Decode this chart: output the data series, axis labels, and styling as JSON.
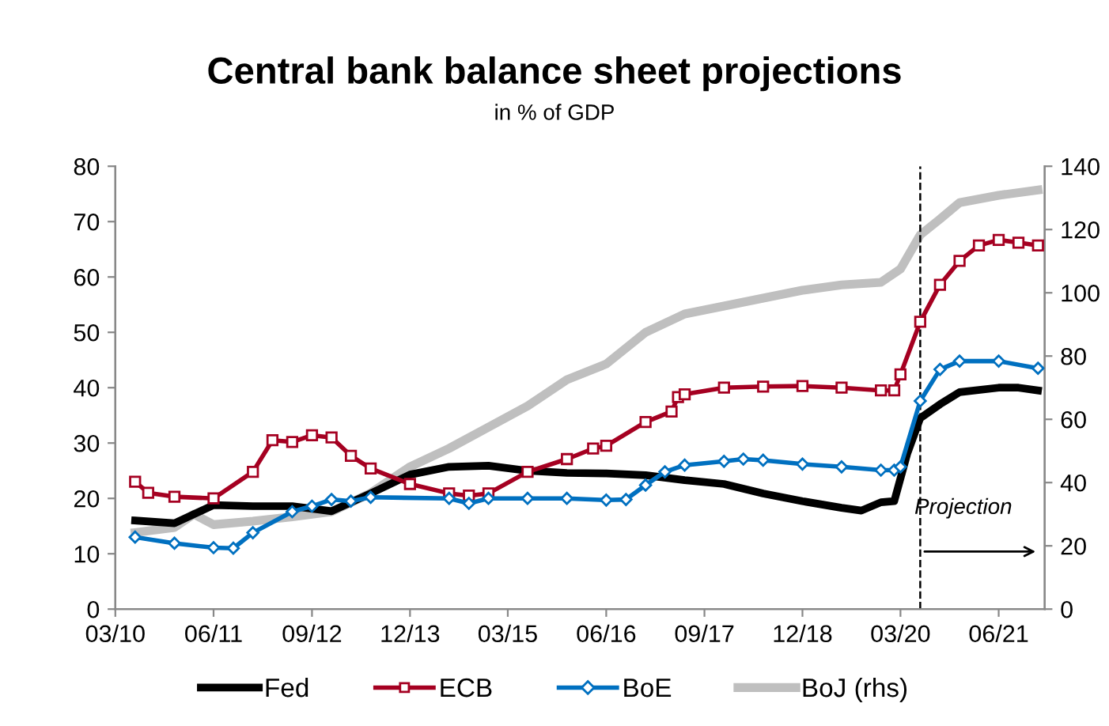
{
  "chart_data": {
    "type": "line",
    "title": "Central bank balance sheet projections",
    "subtitle": "in % of GDP",
    "xlim": [
      "2010-03",
      "2022-01"
    ],
    "xticks": [
      {
        "value": "2010-03",
        "label": "03/10"
      },
      {
        "value": "2011-06",
        "label": "06/11"
      },
      {
        "value": "2012-09",
        "label": "09/12"
      },
      {
        "value": "2013-12",
        "label": "12/13"
      },
      {
        "value": "2015-03",
        "label": "03/15"
      },
      {
        "value": "2016-06",
        "label": "06/16"
      },
      {
        "value": "2017-09",
        "label": "09/17"
      },
      {
        "value": "2018-12",
        "label": "12/18"
      },
      {
        "value": "2020-03",
        "label": "03/20"
      },
      {
        "value": "2021-06",
        "label": "06/21"
      }
    ],
    "ylim": [
      0,
      80
    ],
    "yticks": [
      0,
      10,
      20,
      30,
      40,
      50,
      60,
      70,
      80
    ],
    "y2lim": [
      0,
      140
    ],
    "y2ticks": [
      0,
      20,
      40,
      60,
      80,
      100,
      120,
      140
    ],
    "grid": false,
    "legend": "bottom",
    "ref_lines": [
      {
        "axis": "x",
        "value": "2020-06",
        "line_style": "dashed",
        "color": "#000000"
      }
    ],
    "annotations": [
      "Projection"
    ],
    "series": [
      {
        "name": "Fed",
        "color": "#000000",
        "marker": "none",
        "x": [
          "2010-06",
          "2010-12",
          "2011-06",
          "2011-12",
          "2012-06",
          "2012-12",
          "2013-06",
          "2013-12",
          "2014-06",
          "2014-12",
          "2015-06",
          "2015-12",
          "2016-06",
          "2016-12",
          "2017-06",
          "2017-12",
          "2018-06",
          "2018-12",
          "2019-06",
          "2019-09",
          "2019-12",
          "2020-02",
          "2020-04",
          "2020-06",
          "2020-09",
          "2020-12",
          "2021-06",
          "2021-09",
          "2021-12"
        ],
        "values": [
          16.0,
          15.5,
          18.8,
          18.6,
          18.6,
          17.7,
          20.9,
          24.3,
          25.7,
          25.9,
          25.0,
          24.6,
          24.5,
          24.2,
          23.3,
          22.6,
          20.9,
          19.5,
          18.3,
          17.8,
          19.3,
          19.5,
          28,
          34.5,
          37,
          39.2,
          40,
          40,
          39.5
        ]
      },
      {
        "name": "ECB",
        "color": "#a50021",
        "marker": "square",
        "x": [
          "2010-06",
          "2010-08",
          "2010-12",
          "2011-06",
          "2011-12",
          "2012-03",
          "2012-06",
          "2012-09",
          "2012-12",
          "2013-03",
          "2013-06",
          "2013-12",
          "2014-06",
          "2014-09",
          "2014-12",
          "2015-06",
          "2015-12",
          "2016-04",
          "2016-06",
          "2016-12",
          "2017-04",
          "2017-05",
          "2017-06",
          "2017-12",
          "2018-06",
          "2018-12",
          "2019-06",
          "2019-12",
          "2020-02",
          "2020-03",
          "2020-06",
          "2020-09",
          "2020-12",
          "2021-03",
          "2021-06",
          "2021-09",
          "2021-12"
        ],
        "values": [
          23.0,
          21,
          20.3,
          20,
          24.8,
          30.5,
          30.2,
          31.4,
          31.0,
          27.7,
          25.4,
          22.6,
          20.9,
          20.5,
          20.9,
          24.8,
          27.1,
          29,
          29.5,
          33.8,
          35.7,
          38.3,
          38.8,
          40,
          40.2,
          40.3,
          40,
          39.5,
          39.5,
          42.4,
          51.9,
          58.6,
          62.9,
          65.7,
          66.7,
          66.2,
          65.7
        ]
      },
      {
        "name": "BoE",
        "color": "#0070c0",
        "marker": "diamond",
        "x": [
          "2010-06",
          "2010-12",
          "2011-06",
          "2011-09",
          "2011-12",
          "2012-06",
          "2012-09",
          "2012-12",
          "2013-03",
          "2013-06",
          "2014-06",
          "2014-09",
          "2014-12",
          "2015-06",
          "2015-12",
          "2016-06",
          "2016-09",
          "2016-12",
          "2017-03",
          "2017-06",
          "2017-12",
          "2018-03",
          "2018-06",
          "2018-12",
          "2019-06",
          "2019-12",
          "2020-02",
          "2020-03",
          "2020-06",
          "2020-09",
          "2020-12",
          "2021-06",
          "2021-12"
        ],
        "values": [
          13.0,
          11.9,
          11.1,
          11,
          13.8,
          17.6,
          18.6,
          19.8,
          19.5,
          20.2,
          20,
          19.1,
          20,
          20,
          20,
          19.7,
          19.8,
          22.4,
          24.8,
          26,
          26.7,
          27.1,
          26.9,
          26.2,
          25.7,
          25.1,
          25.1,
          25.7,
          37.6,
          43.3,
          44.8,
          44.8,
          43.5
        ]
      },
      {
        "name": "BoJ (rhs)",
        "color": "#bfbfbf",
        "marker": "none",
        "axis": "y2",
        "x": [
          "2010-06",
          "2010-12",
          "2011-03",
          "2011-06",
          "2011-12",
          "2012-06",
          "2012-12",
          "2013-06",
          "2013-12",
          "2014-06",
          "2014-12",
          "2015-06",
          "2015-12",
          "2016-06",
          "2016-12",
          "2017-06",
          "2017-12",
          "2018-06",
          "2018-12",
          "2019-06",
          "2019-12",
          "2020-03",
          "2020-06",
          "2020-09",
          "2020-12",
          "2021-06",
          "2021-12"
        ],
        "values": [
          24.2,
          25.8,
          30,
          26.7,
          27.8,
          29.2,
          30.8,
          36.7,
          45,
          50.8,
          57.5,
          64.2,
          72.5,
          77.5,
          87.5,
          93.3,
          95.8,
          98.3,
          100.8,
          102.5,
          103.3,
          107.5,
          118.3,
          123.3,
          128.5,
          130.8,
          132.5
        ]
      }
    ]
  }
}
